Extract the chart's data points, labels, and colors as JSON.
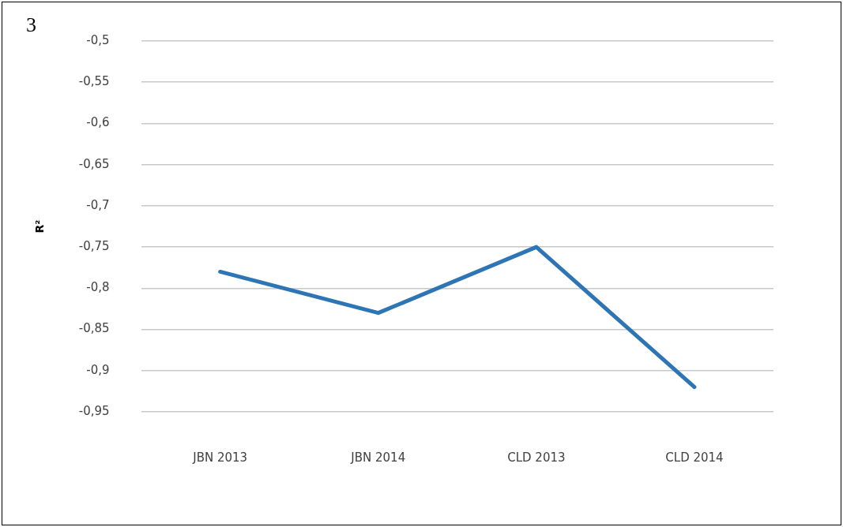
{
  "chart_data": {
    "type": "line",
    "annotations": [
      "3"
    ],
    "ylabel": "R²",
    "categories": [
      "JBN 2013",
      "JBN 2014",
      "CLD 2013",
      "CLD 2014"
    ],
    "series": [
      {
        "color": "#2e75b6",
        "values": [
          -0.78,
          -0.83,
          -0.75,
          -0.92
        ]
      }
    ],
    "ylim": [
      -0.95,
      -0.5
    ],
    "yticks": [
      {
        "value": -0.5,
        "label": "-0,5"
      },
      {
        "value": -0.55,
        "label": "-0,55"
      },
      {
        "value": -0.6,
        "label": "-0,6"
      },
      {
        "value": -0.65,
        "label": "-0,65"
      },
      {
        "value": -0.7,
        "label": "-0,7"
      },
      {
        "value": -0.75,
        "label": "-0,75"
      },
      {
        "value": -0.8,
        "label": "-0,8"
      },
      {
        "value": -0.85,
        "label": "-0,85"
      },
      {
        "value": -0.9,
        "label": "-0,9"
      },
      {
        "value": -0.95,
        "label": "-0,95"
      }
    ],
    "grid": "y",
    "legend": false,
    "marker": "none",
    "line_style": "solid"
  }
}
